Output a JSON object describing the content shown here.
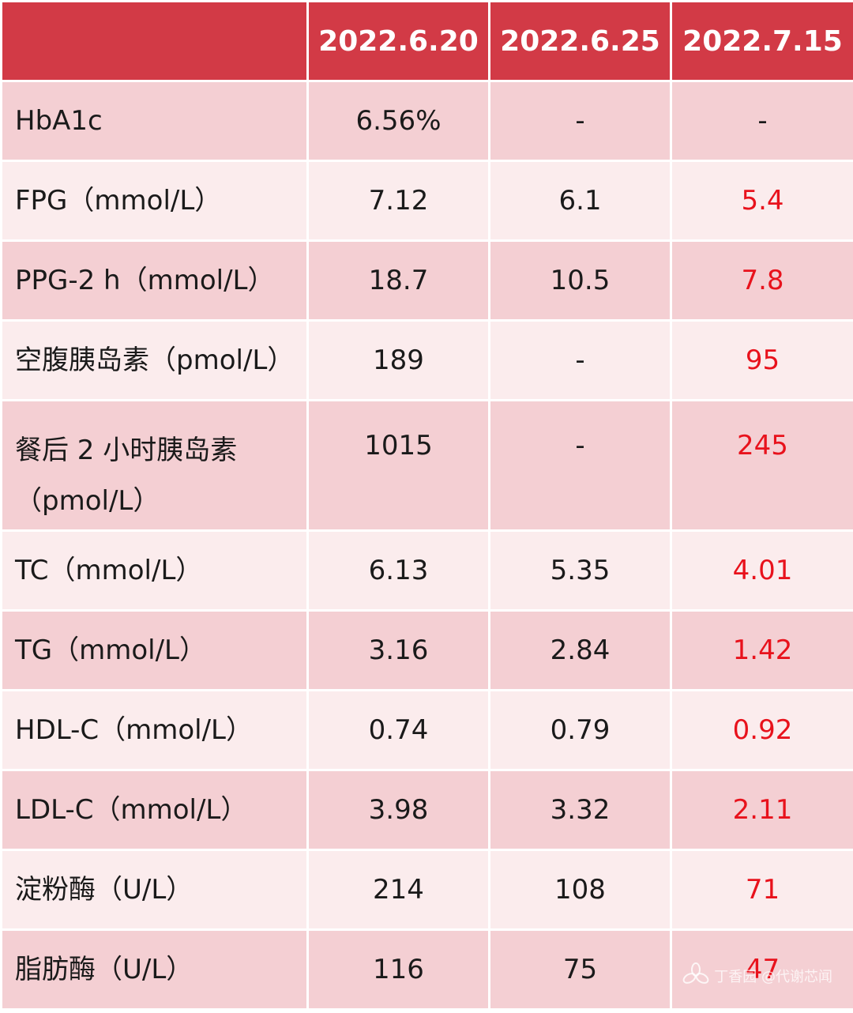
{
  "header": {
    "corner": "",
    "dates": [
      "2022.6.20",
      "2022.6.25",
      "2022.7.15"
    ]
  },
  "rows": [
    {
      "label": "HbA1c",
      "values": [
        "6.56%",
        "-",
        "-"
      ]
    },
    {
      "label": "FPG（mmol/L）",
      "values": [
        "7.12",
        "6.1",
        "5.4"
      ]
    },
    {
      "label": "PPG-2 h（mmol/L）",
      "values": [
        "18.7",
        "10.5",
        "7.8"
      ]
    },
    {
      "label": "空腹胰岛素（pmol/L）",
      "values": [
        "189",
        "-",
        "95"
      ]
    },
    {
      "label": "餐后 2 小时胰岛素（pmol/L）",
      "values": [
        "1015",
        "-",
        "245"
      ]
    },
    {
      "label": "TC（mmol/L）",
      "values": [
        "6.13",
        "5.35",
        "4.01"
      ]
    },
    {
      "label": "TG（mmol/L）",
      "values": [
        "3.16",
        "2.84",
        "1.42"
      ]
    },
    {
      "label": "HDL-C（mmol/L）",
      "values": [
        "0.74",
        "0.79",
        "0.92"
      ]
    },
    {
      "label": "LDL-C（mmol/L）",
      "values": [
        "3.98",
        "3.32",
        "2.11"
      ]
    },
    {
      "label": "淀粉酶（U/L）",
      "values": [
        "214",
        "108",
        "71"
      ]
    },
    {
      "label": "脂肪酶（U/L）",
      "values": [
        "116",
        "75",
        "47"
      ]
    }
  ],
  "colors": {
    "header_bg": "#d23a46",
    "row_odd": "#f4cfd3",
    "row_even": "#fbeced",
    "highlight": "#e8121c"
  },
  "watermark": {
    "text": "丁香园 @代谢芯闻",
    "icon": "flower-logo-icon"
  }
}
